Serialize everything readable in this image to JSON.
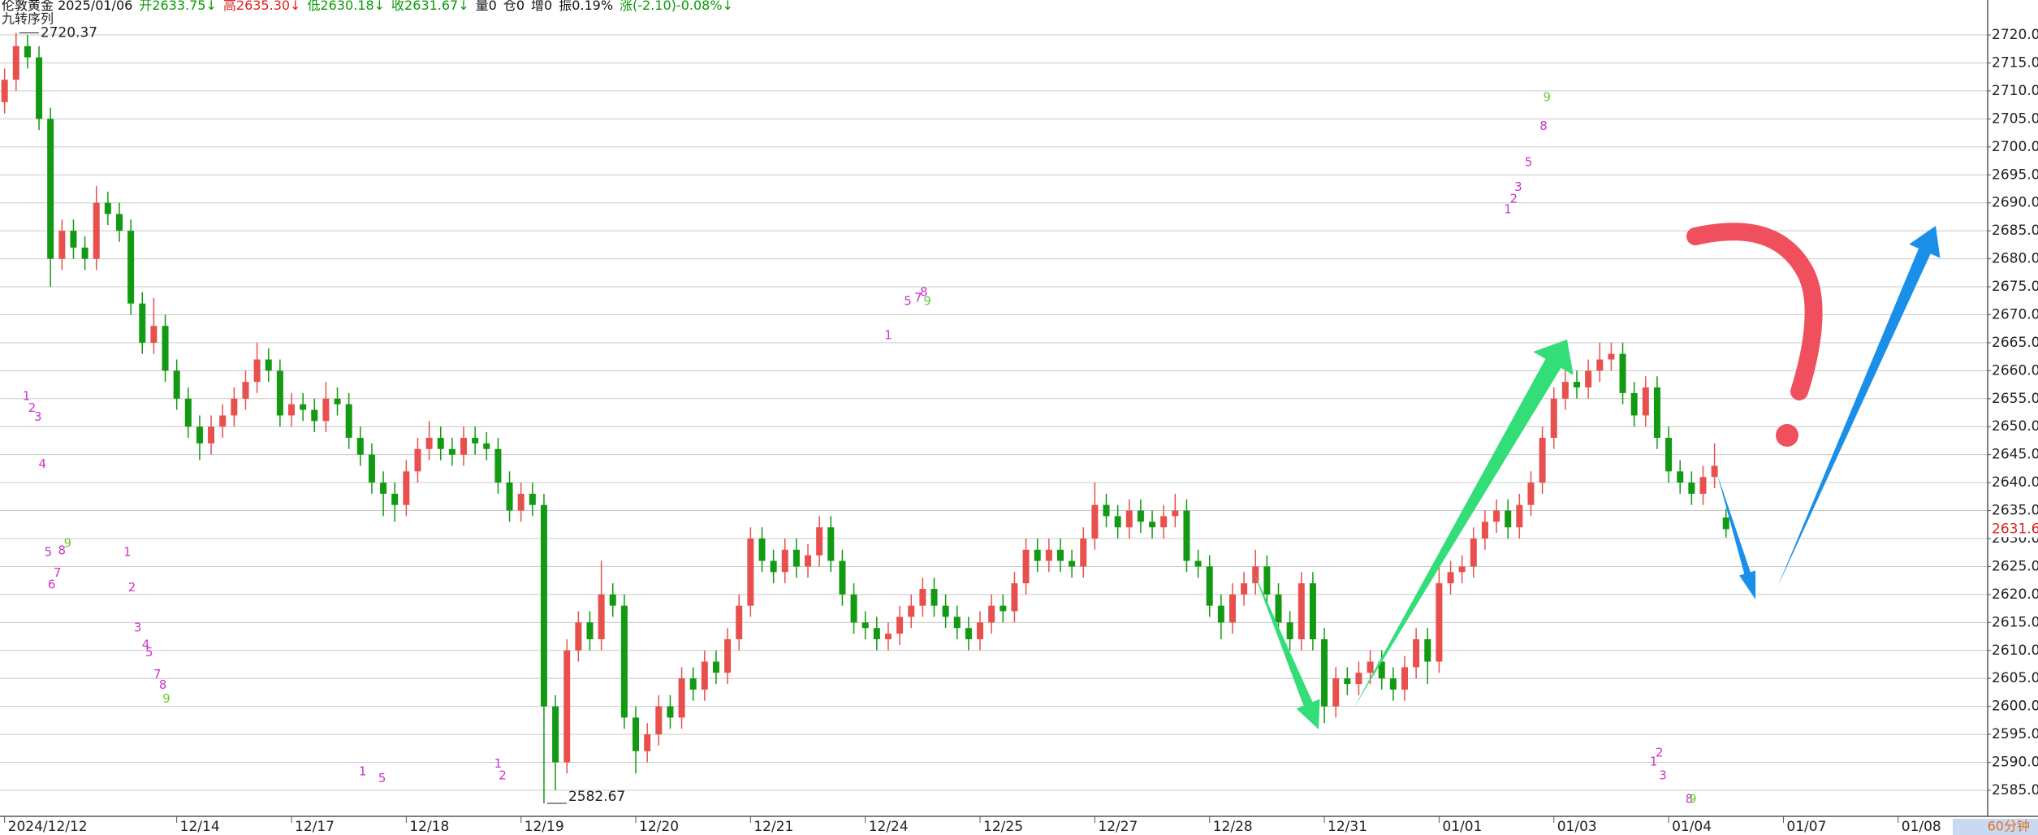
{
  "header": {
    "title": "伦敦黄金 2025/01/06",
    "fields": [
      {
        "text": "开2633.75↓",
        "color": "#0a9a0a"
      },
      {
        "text": "高2635.30↓",
        "color": "#e02020"
      },
      {
        "text": "低2630.18↓",
        "color": "#0a9a0a"
      },
      {
        "text": "收2631.67↓",
        "color": "#0a9a0a"
      },
      {
        "text": "量0",
        "color": "#111111"
      },
      {
        "text": "仓0",
        "color": "#111111"
      },
      {
        "text": "增0",
        "color": "#111111"
      },
      {
        "text": "振0.19%",
        "color": "#111111"
      },
      {
        "text": "涨(-2.10)-0.08%↓",
        "color": "#0a9a0a"
      }
    ]
  },
  "chart_data": {
    "type": "candlestick",
    "subtitle": "九转序列",
    "period": "60分钟",
    "up_color": "#e8504e",
    "down_color": "#129a12",
    "open": [
      2708,
      2712,
      2718,
      2716,
      2705,
      2680,
      2685,
      2682,
      2680,
      2690,
      2688,
      2685,
      2672,
      2665,
      2668,
      2660,
      2655,
      2650,
      2647,
      2650,
      2652,
      2655,
      2658,
      2662,
      2660,
      2652,
      2654,
      2653,
      2651,
      2655,
      2654,
      2648,
      2645,
      2640,
      2638,
      2636,
      2642,
      2646,
      2648,
      2646,
      2645,
      2648,
      2647,
      2646,
      2640,
      2635,
      2638,
      2636,
      2600,
      2590,
      2610,
      2615,
      2612,
      2620,
      2618,
      2598,
      2592,
      2595,
      2600,
      2598,
      2605,
      2603,
      2608,
      2606,
      2612,
      2618,
      2630,
      2626,
      2624,
      2628,
      2625,
      2627,
      2632,
      2626,
      2620,
      2615,
      2614,
      2612,
      2613,
      2616,
      2618,
      2621,
      2618,
      2616,
      2614,
      2612,
      2615,
      2618,
      2617,
      2622,
      2628,
      2626,
      2628,
      2626,
      2625,
      2630,
      2636,
      2634,
      2632,
      2635,
      2633,
      2632,
      2634,
      2635,
      2626,
      2625,
      2618,
      2615,
      2620,
      2622,
      2625,
      2620,
      2615,
      2612,
      2622,
      2612,
      2600,
      2605,
      2604,
      2606,
      2608,
      2605,
      2603,
      2607,
      2612,
      2608,
      2622,
      2624,
      2625,
      2630,
      2633,
      2635,
      2632,
      2636,
      2640,
      2648,
      2655,
      2658,
      2657,
      2660,
      2662,
      2663,
      2656,
      2652,
      2657,
      2648,
      2642,
      2640,
      2638,
      2641,
      2633.75
    ],
    "high": [
      2714,
      2720.37,
      2720,
      2718,
      2707,
      2687,
      2687,
      2684,
      2693,
      2692,
      2690,
      2687,
      2674,
      2673,
      2670,
      2662,
      2657,
      2652,
      2652,
      2654,
      2657,
      2660,
      2665,
      2664,
      2662,
      2656,
      2656,
      2655,
      2658,
      2657,
      2656,
      2650,
      2647,
      2642,
      2640,
      2644,
      2648,
      2651,
      2650,
      2648,
      2650,
      2650,
      2649,
      2648,
      2642,
      2640,
      2640,
      2638,
      2602,
      2612,
      2617,
      2617,
      2626,
      2622,
      2620,
      2600,
      2597,
      2602,
      2602,
      2607,
      2607,
      2610,
      2610,
      2614,
      2620,
      2632,
      2632,
      2628,
      2630,
      2630,
      2629,
      2634,
      2634,
      2628,
      2622,
      2617,
      2616,
      2615,
      2618,
      2620,
      2623,
      2623,
      2620,
      2618,
      2616,
      2617,
      2620,
      2620,
      2624,
      2630,
      2630,
      2630,
      2630,
      2628,
      2632,
      2640,
      2638,
      2636,
      2637,
      2637,
      2635,
      2636,
      2638,
      2637,
      2628,
      2627,
      2620,
      2622,
      2624,
      2628,
      2627,
      2622,
      2617,
      2624,
      2624,
      2614,
      2607,
      2607,
      2608,
      2610,
      2610,
      2607,
      2609,
      2614,
      2614,
      2626,
      2626,
      2627,
      2632,
      2635,
      2637,
      2637,
      2638,
      2642,
      2650,
      2657,
      2660,
      2660,
      2662,
      2665,
      2665,
      2665,
      2658,
      2659,
      2659,
      2650,
      2644,
      2642,
      2643,
      2647,
      2635.3
    ],
    "low": [
      2706,
      2710,
      2714,
      2703,
      2675,
      2678,
      2680,
      2678,
      2678,
      2686,
      2683,
      2670,
      2663,
      2663,
      2658,
      2653,
      2648,
      2644,
      2645,
      2648,
      2650,
      2653,
      2656,
      2658,
      2650,
      2650,
      2651,
      2649,
      2649,
      2652,
      2646,
      2643,
      2638,
      2634,
      2633,
      2634,
      2640,
      2644,
      2644,
      2643,
      2643,
      2645,
      2644,
      2638,
      2633,
      2633,
      2634,
      2582.67,
      2585,
      2588,
      2608,
      2610,
      2610,
      2616,
      2596,
      2588,
      2590,
      2593,
      2596,
      2596,
      2601,
      2601,
      2604,
      2604,
      2610,
      2616,
      2624,
      2622,
      2622,
      2623,
      2623,
      2625,
      2624,
      2618,
      2613,
      2612,
      2610,
      2610,
      2611,
      2614,
      2616,
      2616,
      2614,
      2612,
      2610,
      2610,
      2613,
      2615,
      2615,
      2620,
      2624,
      2624,
      2624,
      2623,
      2623,
      2628,
      2632,
      2630,
      2630,
      2631,
      2630,
      2630,
      2632,
      2624,
      2623,
      2616,
      2612,
      2613,
      2618,
      2620,
      2618,
      2613,
      2610,
      2610,
      2610,
      2597,
      2598,
      2602,
      2602,
      2604,
      2603,
      2601,
      2601,
      2605,
      2604,
      2606,
      2620,
      2622,
      2623,
      2628,
      2631,
      2630,
      2630,
      2634,
      2638,
      2646,
      2653,
      2655,
      2655,
      2658,
      2660,
      2654,
      2650,
      2650,
      2646,
      2640,
      2638,
      2636,
      2636,
      2639,
      2630.18
    ],
    "close": [
      2712,
      2718,
      2716,
      2705,
      2680,
      2685,
      2682,
      2680,
      2690,
      2688,
      2685,
      2672,
      2665,
      2668,
      2660,
      2655,
      2650,
      2647,
      2650,
      2652,
      2655,
      2658,
      2662,
      2660,
      2652,
      2654,
      2653,
      2651,
      2655,
      2654,
      2648,
      2645,
      2640,
      2638,
      2636,
      2642,
      2646,
      2648,
      2646,
      2645,
      2648,
      2647,
      2646,
      2640,
      2635,
      2638,
      2636,
      2600,
      2590,
      2610,
      2615,
      2612,
      2620,
      2618,
      2598,
      2592,
      2595,
      2600,
      2598,
      2605,
      2603,
      2608,
      2606,
      2612,
      2618,
      2630,
      2626,
      2624,
      2628,
      2625,
      2627,
      2632,
      2626,
      2620,
      2615,
      2614,
      2612,
      2613,
      2616,
      2618,
      2621,
      2618,
      2616,
      2614,
      2612,
      2615,
      2618,
      2617,
      2622,
      2628,
      2626,
      2628,
      2626,
      2625,
      2630,
      2636,
      2634,
      2632,
      2635,
      2633,
      2632,
      2634,
      2635,
      2626,
      2625,
      2618,
      2615,
      2620,
      2622,
      2625,
      2620,
      2615,
      2612,
      2622,
      2612,
      2600,
      2605,
      2604,
      2606,
      2608,
      2605,
      2603,
      2607,
      2612,
      2608,
      2622,
      2624,
      2625,
      2630,
      2633,
      2635,
      2632,
      2636,
      2640,
      2648,
      2655,
      2658,
      2657,
      2660,
      2662,
      2663,
      2656,
      2652,
      2657,
      2648,
      2642,
      2640,
      2638,
      2641,
      2643,
      2631.67
    ],
    "xlim": [
      -0.4,
      172.8
    ],
    "xticks": [
      {
        "value": 0,
        "label": "2024/12/12"
      },
      {
        "value": 15,
        "label": "12/14"
      },
      {
        "value": 25,
        "label": "12/17"
      },
      {
        "value": 35,
        "label": "12/18"
      },
      {
        "value": 45,
        "label": "12/19"
      },
      {
        "value": 55,
        "label": "12/20"
      },
      {
        "value": 65,
        "label": "12/21"
      },
      {
        "value": 75,
        "label": "12/24"
      },
      {
        "value": 85,
        "label": "12/25"
      },
      {
        "value": 95,
        "label": "12/27"
      },
      {
        "value": 105,
        "label": "12/28"
      },
      {
        "value": 115,
        "label": "12/31"
      },
      {
        "value": 125,
        "label": "01/01"
      },
      {
        "value": 135,
        "label": "01/03"
      },
      {
        "value": 145,
        "label": "01/04"
      },
      {
        "value": 155,
        "label": "01/07"
      },
      {
        "value": 165,
        "label": "01/08"
      }
    ],
    "ylim": [
      2580.35,
      2726.25
    ],
    "yticks": [
      {
        "value": 2585,
        "label": "2585.00"
      },
      {
        "value": 2590,
        "label": "2590.00"
      },
      {
        "value": 2595,
        "label": "2595.00"
      },
      {
        "value": 2600,
        "label": "2600.00"
      },
      {
        "value": 2605,
        "label": "2605.00"
      },
      {
        "value": 2610,
        "label": "2610.00"
      },
      {
        "value": 2615,
        "label": "2615.00"
      },
      {
        "value": 2620,
        "label": "2620.00"
      },
      {
        "value": 2625,
        "label": "2625.00"
      },
      {
        "value": 2630,
        "label": "2630.00"
      },
      {
        "value": 2635,
        "label": "2635.00"
      },
      {
        "value": 2640,
        "label": "2640.00"
      },
      {
        "value": 2645,
        "label": "2645.00"
      },
      {
        "value": 2650,
        "label": "2650.00"
      },
      {
        "value": 2655,
        "label": "2655.00"
      },
      {
        "value": 2660,
        "label": "2660.00"
      },
      {
        "value": 2665,
        "label": "2665.00"
      },
      {
        "value": 2670,
        "label": "2670.00"
      },
      {
        "value": 2675,
        "label": "2675.00"
      },
      {
        "value": 2680,
        "label": "2680.00"
      },
      {
        "value": 2685,
        "label": "2685.00"
      },
      {
        "value": 2690,
        "label": "2690.00"
      },
      {
        "value": 2695,
        "label": "2695.00"
      },
      {
        "value": 2700,
        "label": "2700.00"
      },
      {
        "value": 2705,
        "label": "2705.00"
      },
      {
        "value": 2710,
        "label": "2710.00"
      },
      {
        "value": 2715,
        "label": "2715.00"
      },
      {
        "value": 2720,
        "label": "2720.00"
      }
    ],
    "grid": true,
    "extreme_marks": [
      {
        "x": 1,
        "y": 2720.37
      },
      {
        "x": 47,
        "y": 2582.67
      }
    ],
    "sequence_marks": [
      {
        "text": "1",
        "x": 1.9,
        "y": 2655.4,
        "color": "#cc33cc"
      },
      {
        "text": "2",
        "x": 2.4,
        "y": 2653.3,
        "color": "#cc33cc"
      },
      {
        "text": "3",
        "x": 2.9,
        "y": 2651.7,
        "color": "#cc33cc"
      },
      {
        "text": "4",
        "x": 3.3,
        "y": 2643.3,
        "color": "#cc33cc"
      },
      {
        "text": "5",
        "x": 3.8,
        "y": 2627.5,
        "color": "#cc33cc"
      },
      {
        "text": "6",
        "x": 4.1,
        "y": 2621.7,
        "color": "#cc33cc"
      },
      {
        "text": "7",
        "x": 4.6,
        "y": 2623.8,
        "color": "#cc33cc"
      },
      {
        "text": "8",
        "x": 5.0,
        "y": 2627.8,
        "color": "#cc33cc"
      },
      {
        "text": "9",
        "x": 5.5,
        "y": 2629.1,
        "color": "#66cc33"
      },
      {
        "text": "1",
        "x": 10.7,
        "y": 2627.5,
        "color": "#cc33cc"
      },
      {
        "text": "2",
        "x": 11.1,
        "y": 2621.2,
        "color": "#cc33cc"
      },
      {
        "text": "3",
        "x": 11.6,
        "y": 2614.0,
        "color": "#cc33cc"
      },
      {
        "text": "4",
        "x": 12.3,
        "y": 2611.0,
        "color": "#cc33cc"
      },
      {
        "text": "5",
        "x": 12.6,
        "y": 2609.6,
        "color": "#cc33cc"
      },
      {
        "text": "7",
        "x": 13.3,
        "y": 2605.7,
        "color": "#cc33cc"
      },
      {
        "text": "8",
        "x": 13.8,
        "y": 2603.8,
        "color": "#cc33cc"
      },
      {
        "text": "9",
        "x": 14.1,
        "y": 2601.3,
        "color": "#66cc33"
      },
      {
        "text": "1",
        "x": 31.2,
        "y": 2588.3,
        "color": "#cc33cc"
      },
      {
        "text": "5",
        "x": 32.9,
        "y": 2587.1,
        "color": "#cc33cc"
      },
      {
        "text": "1",
        "x": 43.0,
        "y": 2589.7,
        "color": "#cc33cc"
      },
      {
        "text": "2",
        "x": 43.4,
        "y": 2587.6,
        "color": "#cc33cc"
      },
      {
        "text": "1",
        "x": 77.0,
        "y": 2666.3,
        "color": "#cc33cc"
      },
      {
        "text": "5",
        "x": 78.7,
        "y": 2672.4,
        "color": "#cc33cc"
      },
      {
        "text": "7",
        "x": 79.6,
        "y": 2673.0,
        "color": "#cc33cc"
      },
      {
        "text": "8",
        "x": 80.1,
        "y": 2674.0,
        "color": "#cc33cc"
      },
      {
        "text": "9",
        "x": 80.4,
        "y": 2672.4,
        "color": "#66cc33"
      },
      {
        "text": "1",
        "x": 131.0,
        "y": 2688.8,
        "color": "#cc33cc"
      },
      {
        "text": "2",
        "x": 131.5,
        "y": 2690.7,
        "color": "#cc33cc"
      },
      {
        "text": "3",
        "x": 131.9,
        "y": 2692.8,
        "color": "#cc33cc"
      },
      {
        "text": "5",
        "x": 132.8,
        "y": 2697.2,
        "color": "#cc33cc"
      },
      {
        "text": "8",
        "x": 134.1,
        "y": 2703.7,
        "color": "#cc33cc"
      },
      {
        "text": "9",
        "x": 134.4,
        "y": 2708.8,
        "color": "#66cc33"
      },
      {
        "text": "1",
        "x": 143.7,
        "y": 2590.1,
        "color": "#cc33cc"
      },
      {
        "text": "2",
        "x": 144.2,
        "y": 2591.7,
        "color": "#cc33cc"
      },
      {
        "text": "3",
        "x": 144.5,
        "y": 2587.6,
        "color": "#cc33cc"
      },
      {
        "text": "8",
        "x": 146.8,
        "y": 2583.4,
        "color": "#cc33cc"
      },
      {
        "text": "9",
        "x": 147.1,
        "y": 2583.4,
        "color": "#66cc33"
      }
    ]
  }
}
